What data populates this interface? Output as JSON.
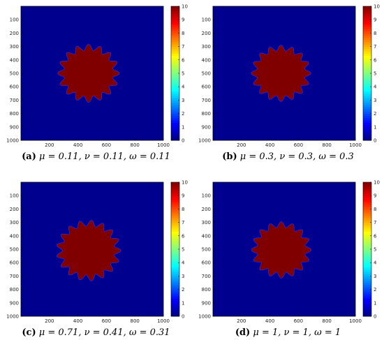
{
  "chart_data": [
    {
      "type": "heatmap",
      "panel_label": "(a)",
      "caption": {
        "mu": "μ = 0.11,",
        "nu": "ν = 0.11,",
        "omega": "ω = 0.11"
      },
      "xlim": [
        0,
        1000
      ],
      "ylim": [
        0,
        1000
      ],
      "x_ticks": [
        200,
        400,
        600,
        800,
        1000
      ],
      "y_ticks": [
        100,
        200,
        300,
        400,
        500,
        600,
        700,
        800,
        900,
        1000
      ],
      "colorbar": {
        "range": [
          0,
          10
        ],
        "ticks": [
          0,
          1,
          2,
          3,
          4,
          5,
          6,
          7,
          8,
          9,
          10
        ]
      },
      "background_value": 0,
      "region_value": 10,
      "region": {
        "center": [
          475,
          500
        ],
        "radius": 195,
        "teeth": 16,
        "tooth_amplitude": 22
      },
      "colors": {
        "background": "#00008f",
        "region": "#800000"
      }
    },
    {
      "type": "heatmap",
      "panel_label": "(b)",
      "caption": {
        "mu": "μ = 0.3,",
        "nu": "ν = 0.3,",
        "omega": "ω = 0.3"
      },
      "xlim": [
        0,
        1000
      ],
      "ylim": [
        0,
        1000
      ],
      "x_ticks": [
        200,
        400,
        600,
        800,
        1000
      ],
      "y_ticks": [
        100,
        200,
        300,
        400,
        500,
        600,
        700,
        800,
        900,
        1000
      ],
      "colorbar": {
        "range": [
          0,
          10
        ],
        "ticks": [
          0,
          1,
          2,
          3,
          4,
          5,
          6,
          7,
          8,
          9,
          10
        ]
      },
      "background_value": 0,
      "region_value": 10,
      "region": {
        "center": [
          478,
          500
        ],
        "radius": 190,
        "teeth": 16,
        "tooth_amplitude": 20
      },
      "colors": {
        "background": "#00008f",
        "region": "#800000"
      }
    },
    {
      "type": "heatmap",
      "panel_label": "(c)",
      "caption": {
        "mu": "μ = 0.71,",
        "nu": "ν = 0.41,",
        "omega": "ω = 0.31"
      },
      "xlim": [
        0,
        1000
      ],
      "ylim": [
        0,
        1000
      ],
      "x_ticks": [
        200,
        400,
        600,
        800,
        1000
      ],
      "y_ticks": [
        100,
        200,
        300,
        400,
        500,
        600,
        700,
        800,
        900,
        1000
      ],
      "colorbar": {
        "range": [
          0,
          10
        ],
        "ticks": [
          0,
          1,
          2,
          3,
          4,
          5,
          6,
          7,
          8,
          9,
          10
        ]
      },
      "background_value": 0,
      "region_value": 10,
      "region": {
        "center": [
          475,
          510
        ],
        "radius": 205,
        "teeth": 17,
        "tooth_amplitude": 22
      },
      "colors": {
        "background": "#00008f",
        "region": "#800000"
      }
    },
    {
      "type": "heatmap",
      "panel_label": "(d)",
      "caption": {
        "mu": "μ = 1,",
        "nu": "ν = 1,",
        "omega": "ω = 1"
      },
      "xlim": [
        0,
        1000
      ],
      "ylim": [
        0,
        1000
      ],
      "x_ticks": [
        200,
        400,
        600,
        800,
        1000
      ],
      "y_ticks": [
        100,
        200,
        300,
        400,
        500,
        600,
        700,
        800,
        900,
        1000
      ],
      "colorbar": {
        "range": [
          0,
          10
        ],
        "ticks": [
          0,
          1,
          2,
          3,
          4,
          5,
          6,
          7,
          8,
          9,
          10
        ]
      },
      "background_value": 0,
      "region_value": 10,
      "region": {
        "center": [
          480,
          505
        ],
        "radius": 190,
        "teeth": 16,
        "tooth_amplitude": 20
      },
      "colors": {
        "background": "#00008f",
        "region": "#800000"
      }
    }
  ]
}
